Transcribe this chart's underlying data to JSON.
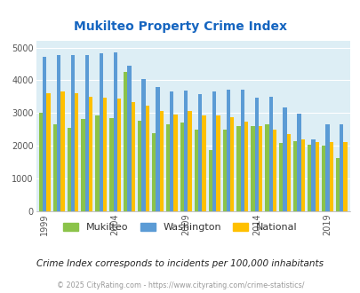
{
  "title": "Mukilteo Property Crime Index",
  "subtitle": "Crime Index corresponds to incidents per 100,000 inhabitants",
  "footer": "© 2025 CityRating.com - https://www.cityrating.com/crime-statistics/",
  "years": [
    1999,
    2000,
    2001,
    2002,
    2003,
    2004,
    2005,
    2006,
    2007,
    2008,
    2009,
    2010,
    2011,
    2012,
    2013,
    2014,
    2015,
    2016,
    2017,
    2018,
    2019,
    2020
  ],
  "mukilteo": [
    3000,
    2650,
    2530,
    2820,
    2920,
    2840,
    4250,
    2760,
    2380,
    2650,
    2700,
    2480,
    1870,
    2490,
    2600,
    2610,
    2640,
    2090,
    2130,
    2020,
    1990,
    1620
  ],
  "washington": [
    4720,
    4780,
    4760,
    4760,
    4820,
    4840,
    4450,
    4030,
    3790,
    3660,
    3690,
    3580,
    3670,
    3700,
    3700,
    3480,
    3500,
    3160,
    2990,
    2200,
    2660,
    2660
  ],
  "national": [
    3600,
    3660,
    3610,
    3500,
    3460,
    3440,
    3330,
    3210,
    3050,
    2960,
    3050,
    2930,
    2920,
    2880,
    2730,
    2600,
    2490,
    2360,
    2200,
    2120,
    2110,
    2110
  ],
  "bar_width": 0.27,
  "color_mukilteo": "#8bc34a",
  "color_washington": "#5b9bd5",
  "color_national": "#ffc000",
  "bg_color": "#ddeef5",
  "ylim": [
    0,
    5200
  ],
  "yticks": [
    0,
    1000,
    2000,
    3000,
    4000,
    5000
  ],
  "title_color": "#1565c0",
  "subtitle_color": "#222222",
  "footer_color": "#999999",
  "grid_color": "#ffffff",
  "axis_label_color": "#555555",
  "tick_years": [
    1999,
    2004,
    2009,
    2014,
    2019
  ]
}
